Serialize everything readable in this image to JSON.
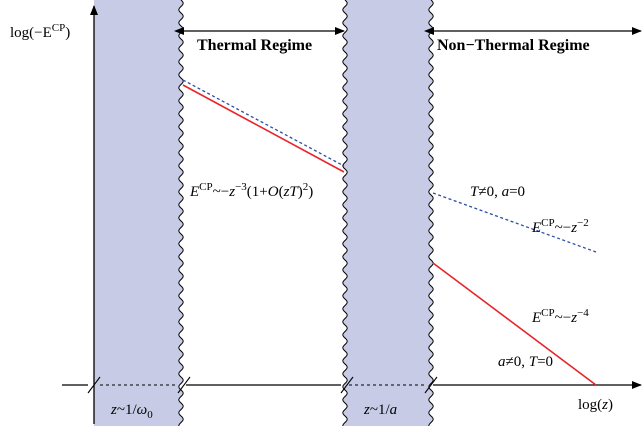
{
  "axes": {
    "y_label": "log(−E",
    "y_label_sup": "CP",
    "y_label_close": ")",
    "x_label": "log(",
    "x_label_var": "z",
    "x_label_close": ")"
  },
  "regimes": {
    "thermal": "Thermal Regime",
    "non_thermal": "Non−Thermal Regime"
  },
  "bands": {
    "left_z": "z",
    "left_rel": "~1/",
    "left_omega": "ω",
    "left_sub": "0",
    "middle_z": "z",
    "middle_rel": "~1/",
    "middle_a": "a"
  },
  "annotations": {
    "thermal_formula": {
      "E": "E",
      "sup": "CP",
      "rel": "~−",
      "z": "z",
      "exp": "−3",
      "open": "(1+",
      "O": "O",
      "paren_open": "(",
      "zT": "zT",
      "paren_close": ")",
      "sq": "2",
      "close": ")"
    },
    "dashed_condition": {
      "T": "T",
      "neq": "≠0, ",
      "a": "a",
      "eq": "=0"
    },
    "dashed_law": {
      "E": "E",
      "sup": "CP",
      "rel": "~−",
      "z": "z",
      "exp": "−2"
    },
    "solid_law": {
      "E": "E",
      "sup": "CP",
      "rel": "~−",
      "z": "z",
      "exp": "−4"
    },
    "solid_condition": {
      "a": "a",
      "neq": "≠0, ",
      "T": "T",
      "eq": "=0"
    }
  },
  "colors": {
    "band_fill": "#c8cbe6",
    "solid_line": "#e8252b",
    "dashed_line": "#2b4fa3",
    "axis": "#000000"
  }
}
